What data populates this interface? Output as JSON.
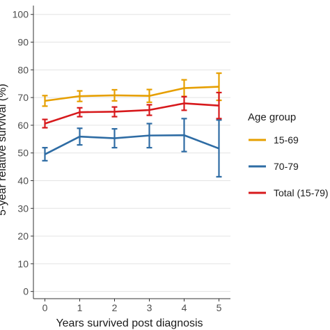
{
  "chart_data": {
    "type": "line",
    "xlabel": "Years survived post diagnosis",
    "ylabel": "5-year relative survival (%)",
    "x": [
      0,
      1,
      2,
      3,
      4,
      5
    ],
    "x_ticks": [
      "0",
      "1",
      "2",
      "3",
      "4",
      "5"
    ],
    "ylim": [
      0,
      100
    ],
    "y_ticks": [
      "0",
      "10",
      "20",
      "30",
      "40",
      "50",
      "60",
      "70",
      "80",
      "90",
      "100"
    ],
    "grid": "horizontal",
    "legend": {
      "title": "Age group",
      "placement": "right"
    },
    "series": [
      {
        "name": "15-69",
        "color": "#E69F00",
        "values": [
          68.8,
          70.5,
          70.8,
          70.6,
          73.4,
          73.9
        ],
        "lower": [
          66.9,
          68.6,
          68.8,
          68.3,
          70.4,
          69.0
        ],
        "upper": [
          70.7,
          72.4,
          72.8,
          72.9,
          76.4,
          78.8
        ]
      },
      {
        "name": "70-79",
        "color": "#2E6CA4",
        "values": [
          49.5,
          55.9,
          55.3,
          56.3,
          56.4,
          51.6
        ],
        "lower": [
          47.2,
          52.9,
          51.9,
          51.9,
          50.5,
          41.4
        ],
        "upper": [
          51.9,
          58.9,
          58.7,
          60.6,
          62.4,
          61.9
        ]
      },
      {
        "name": "Total (15-79)",
        "color": "#D7191C",
        "values": [
          60.6,
          64.7,
          64.9,
          65.5,
          67.9,
          67.1
        ],
        "lower": [
          59.1,
          63.1,
          63.1,
          63.6,
          65.4,
          62.4
        ],
        "upper": [
          62.1,
          66.3,
          66.6,
          67.4,
          70.3,
          71.8
        ]
      }
    ]
  }
}
